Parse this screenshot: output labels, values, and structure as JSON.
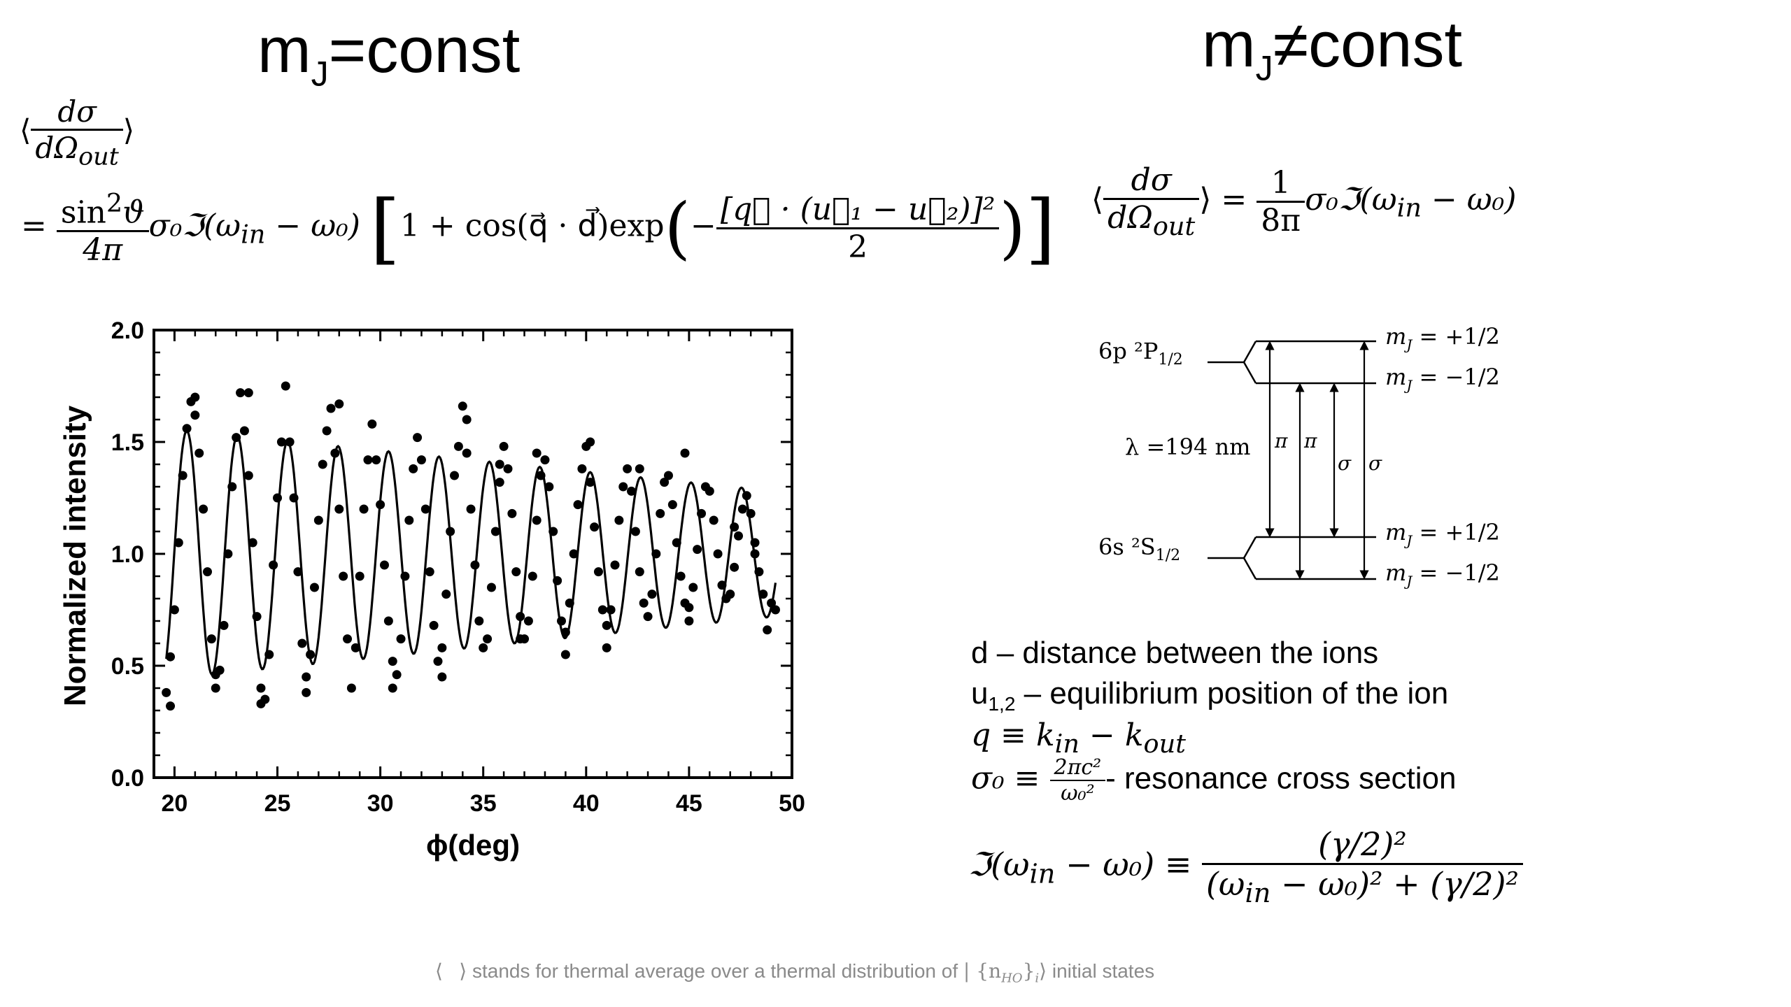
{
  "left_heading": {
    "main": "m",
    "sub": "J",
    "rest": "=const"
  },
  "right_heading": {
    "main": "m",
    "sub": "J",
    "rest": "≠const"
  },
  "left_formula": {
    "lhs_num": "dσ",
    "lhs_den": "dΩ",
    "lhs_den_sub": "out",
    "rhs_num": "sin",
    "rhs_num_sup": "2",
    "rhs_num_var": "ϑ",
    "rhs_den": "4π",
    "body": "σ₀ℑ(ω",
    "body_sub_in": "in",
    "body_tail": " − ω₀)",
    "bracket_left": "1 + cos(q⃗ · d⃗)exp",
    "exp_num": "[q⃗ · (u⃗₁ − u⃗₂)]²",
    "exp_den": "2"
  },
  "right_formula": {
    "lhs_num": "dσ",
    "lhs_den": "dΩ",
    "lhs_den_sub": "out",
    "rhs_num": "1",
    "rhs_den": "8π",
    "body": "σ₀ℑ(ω",
    "body_sub_in": "in",
    "body_tail": " − ω₀)"
  },
  "chart_data": {
    "type": "scatter",
    "title": "",
    "xlabel": "ϕ(deg)",
    "ylabel": "Normalized intensity",
    "xlim": [
      19,
      50
    ],
    "ylim": [
      0,
      2.0
    ],
    "x_ticks": [
      "20",
      "25",
      "30",
      "35",
      "40",
      "45",
      "50"
    ],
    "y_ticks": [
      "0.0",
      "0.5",
      "1.0",
      "1.5",
      "2.0"
    ],
    "x_tick_values": [
      20,
      25,
      30,
      35,
      40,
      45,
      50
    ],
    "y_tick_values": [
      0,
      0.5,
      1.0,
      1.5,
      2.0
    ],
    "grid": false,
    "fit_curve": {
      "model": "1 + A(x)·cos(2π(x − 20.6)/2.45)",
      "period_deg": 2.45,
      "peak_deg": 20.6,
      "amplitude_start": 0.56,
      "amplitude_end": 0.28
    },
    "series": [
      {
        "points": [
          [
            19.6,
            0.38
          ],
          [
            19.8,
            0.54
          ],
          [
            20.0,
            0.75
          ],
          [
            20.2,
            1.05
          ],
          [
            20.4,
            1.35
          ],
          [
            20.6,
            1.56
          ],
          [
            20.8,
            1.68
          ],
          [
            21.0,
            1.62
          ],
          [
            21.2,
            1.45
          ],
          [
            21.4,
            1.2
          ],
          [
            21.6,
            0.92
          ],
          [
            21.8,
            0.62
          ],
          [
            22.0,
            0.46
          ],
          [
            22.2,
            0.48
          ],
          [
            22.4,
            0.68
          ],
          [
            22.6,
            1.0
          ],
          [
            22.8,
            1.3
          ],
          [
            23.0,
            1.52
          ],
          [
            23.2,
            1.72
          ],
          [
            23.4,
            1.55
          ],
          [
            23.6,
            1.35
          ],
          [
            23.8,
            1.05
          ],
          [
            24.0,
            0.72
          ],
          [
            24.2,
            0.4
          ],
          [
            24.4,
            0.35
          ],
          [
            24.6,
            0.55
          ],
          [
            24.8,
            0.95
          ],
          [
            25.0,
            1.25
          ],
          [
            25.2,
            1.5
          ],
          [
            25.4,
            1.75
          ],
          [
            25.6,
            1.5
          ],
          [
            25.8,
            1.25
          ],
          [
            26.0,
            0.92
          ],
          [
            26.2,
            0.6
          ],
          [
            26.4,
            0.38
          ],
          [
            26.6,
            0.55
          ],
          [
            26.8,
            0.85
          ],
          [
            27.0,
            1.15
          ],
          [
            27.2,
            1.4
          ],
          [
            27.4,
            1.55
          ],
          [
            27.6,
            1.65
          ],
          [
            27.8,
            1.45
          ],
          [
            28.0,
            1.2
          ],
          [
            28.2,
            0.9
          ],
          [
            28.4,
            0.62
          ],
          [
            28.6,
            0.4
          ],
          [
            28.8,
            0.58
          ],
          [
            29.0,
            0.9
          ],
          [
            29.2,
            1.2
          ],
          [
            29.4,
            1.42
          ],
          [
            29.6,
            1.58
          ],
          [
            29.8,
            1.42
          ],
          [
            30.0,
            1.22
          ],
          [
            30.2,
            0.95
          ],
          [
            30.4,
            0.7
          ],
          [
            30.6,
            0.52
          ],
          [
            30.8,
            0.46
          ],
          [
            31.0,
            0.62
          ],
          [
            31.2,
            0.9
          ],
          [
            31.4,
            1.15
          ],
          [
            31.6,
            1.38
          ],
          [
            31.8,
            1.52
          ],
          [
            32.0,
            1.42
          ],
          [
            32.2,
            1.2
          ],
          [
            32.4,
            0.92
          ],
          [
            32.6,
            0.68
          ],
          [
            32.8,
            0.52
          ],
          [
            33.0,
            0.58
          ],
          [
            33.2,
            0.82
          ],
          [
            33.4,
            1.1
          ],
          [
            33.6,
            1.35
          ],
          [
            33.8,
            1.48
          ],
          [
            34.0,
            1.66
          ],
          [
            34.2,
            1.45
          ],
          [
            34.4,
            1.2
          ],
          [
            34.6,
            0.95
          ],
          [
            34.8,
            0.7
          ],
          [
            35.0,
            0.58
          ],
          [
            35.2,
            0.62
          ],
          [
            35.4,
            0.85
          ],
          [
            35.6,
            1.1
          ],
          [
            35.8,
            1.32
          ],
          [
            36.0,
            1.48
          ],
          [
            36.2,
            1.38
          ],
          [
            36.4,
            1.18
          ],
          [
            36.6,
            0.92
          ],
          [
            36.8,
            0.72
          ],
          [
            37.0,
            0.62
          ],
          [
            37.2,
            0.7
          ],
          [
            37.4,
            0.9
          ],
          [
            37.6,
            1.15
          ],
          [
            37.8,
            1.35
          ],
          [
            38.0,
            1.42
          ],
          [
            38.2,
            1.3
          ],
          [
            38.4,
            1.1
          ],
          [
            38.6,
            0.88
          ],
          [
            38.8,
            0.7
          ],
          [
            39.0,
            0.65
          ],
          [
            39.2,
            0.78
          ],
          [
            39.4,
            1.0
          ],
          [
            39.6,
            1.22
          ],
          [
            39.8,
            1.38
          ],
          [
            40.0,
            1.48
          ],
          [
            40.2,
            1.32
          ],
          [
            40.4,
            1.12
          ],
          [
            40.6,
            0.92
          ],
          [
            40.8,
            0.75
          ],
          [
            41.0,
            0.68
          ],
          [
            41.2,
            0.75
          ],
          [
            41.4,
            0.95
          ],
          [
            41.6,
            1.15
          ],
          [
            41.8,
            1.3
          ],
          [
            42.0,
            1.38
          ],
          [
            42.2,
            1.28
          ],
          [
            42.4,
            1.1
          ],
          [
            42.6,
            0.92
          ],
          [
            42.8,
            0.78
          ],
          [
            43.0,
            0.72
          ],
          [
            43.2,
            0.82
          ],
          [
            43.4,
            1.0
          ],
          [
            43.6,
            1.18
          ],
          [
            43.8,
            1.32
          ],
          [
            44.0,
            1.35
          ],
          [
            44.2,
            1.22
          ],
          [
            44.4,
            1.05
          ],
          [
            44.6,
            0.9
          ],
          [
            44.8,
            0.78
          ],
          [
            45.0,
            0.76
          ],
          [
            45.2,
            0.85
          ],
          [
            45.4,
            1.02
          ],
          [
            45.6,
            1.18
          ],
          [
            45.8,
            1.3
          ],
          [
            46.0,
            1.28
          ],
          [
            46.2,
            1.15
          ],
          [
            46.4,
            1.0
          ],
          [
            46.6,
            0.86
          ],
          [
            46.8,
            0.8
          ],
          [
            47.0,
            0.82
          ],
          [
            47.2,
            0.94
          ],
          [
            47.4,
            1.08
          ],
          [
            47.6,
            1.2
          ],
          [
            47.8,
            1.26
          ],
          [
            48.0,
            1.18
          ],
          [
            48.2,
            1.05
          ],
          [
            48.4,
            0.92
          ],
          [
            48.6,
            0.82
          ],
          [
            48.8,
            0.66
          ],
          [
            49.0,
            0.78
          ],
          [
            21.0,
            1.7
          ],
          [
            23.6,
            1.72
          ],
          [
            28.0,
            1.67
          ],
          [
            22.0,
            0.4
          ],
          [
            24.2,
            0.33
          ],
          [
            19.8,
            0.32
          ],
          [
            34.2,
            1.6
          ],
          [
            36.8,
            0.62
          ],
          [
            39.0,
            0.55
          ],
          [
            41.0,
            0.58
          ],
          [
            47.2,
            1.12
          ],
          [
            48.2,
            1.0
          ],
          [
            30.6,
            0.4
          ],
          [
            26.4,
            0.45
          ],
          [
            33.0,
            0.45
          ],
          [
            44.8,
            1.45
          ],
          [
            45.0,
            0.7
          ],
          [
            49.2,
            0.75
          ],
          [
            42.6,
            1.38
          ],
          [
            37.6,
            1.45
          ],
          [
            40.2,
            1.5
          ],
          [
            35.8,
            1.4
          ]
        ]
      }
    ]
  },
  "energy_levels": {
    "upper_state": "6p ²P",
    "upper_state_sub": "1/2",
    "lower_state": "6s ²S",
    "lower_state_sub": "1/2",
    "m_upper_plus": "m",
    "m_upper_minus": "m",
    "m_lower_plus": "m",
    "m_lower_minus": "m",
    "m_sub": "J",
    "m_plus_value": " = +1/2",
    "m_minus_value": " = −1/2",
    "wavelength": "λ =194 nm",
    "pi_label": "π",
    "sigma_label": "σ"
  },
  "definitions": {
    "d_line": "d – distance between the ions",
    "u_main": "u",
    "u_sub": "1,2",
    "u_rest": " – equilibrium position of the ion",
    "q_line_a": "q ≡ k",
    "q_sub_in": "in",
    "q_line_b": " − k",
    "q_sub_out": "out",
    "sigma_lhs": "σ₀ ≡ ",
    "sigma_num": "2πc²",
    "sigma_den": "ω₀²",
    "sigma_desc": "- resonance cross section",
    "lorentz_lhs": "ℑ(ω",
    "lorentz_lhs_sub": "in",
    "lorentz_lhs_tail": " − ω₀) ≡ ",
    "lorentz_num": "(γ/2)²",
    "lorentz_den_a": "(ω",
    "lorentz_den_sub": "in",
    "lorentz_den_b": " − ω₀)² + (γ/2)²"
  },
  "footnote": {
    "bracket_open": "⟨",
    "bracket_close": "⟩",
    "text": " stands for thermal average over a thermal distribution of ",
    "state": "| {n",
    "state_sub": "HO",
    "state_tail": "}",
    "state_sub2": "i",
    "state_close": "⟩",
    "text_end": " initial states"
  }
}
